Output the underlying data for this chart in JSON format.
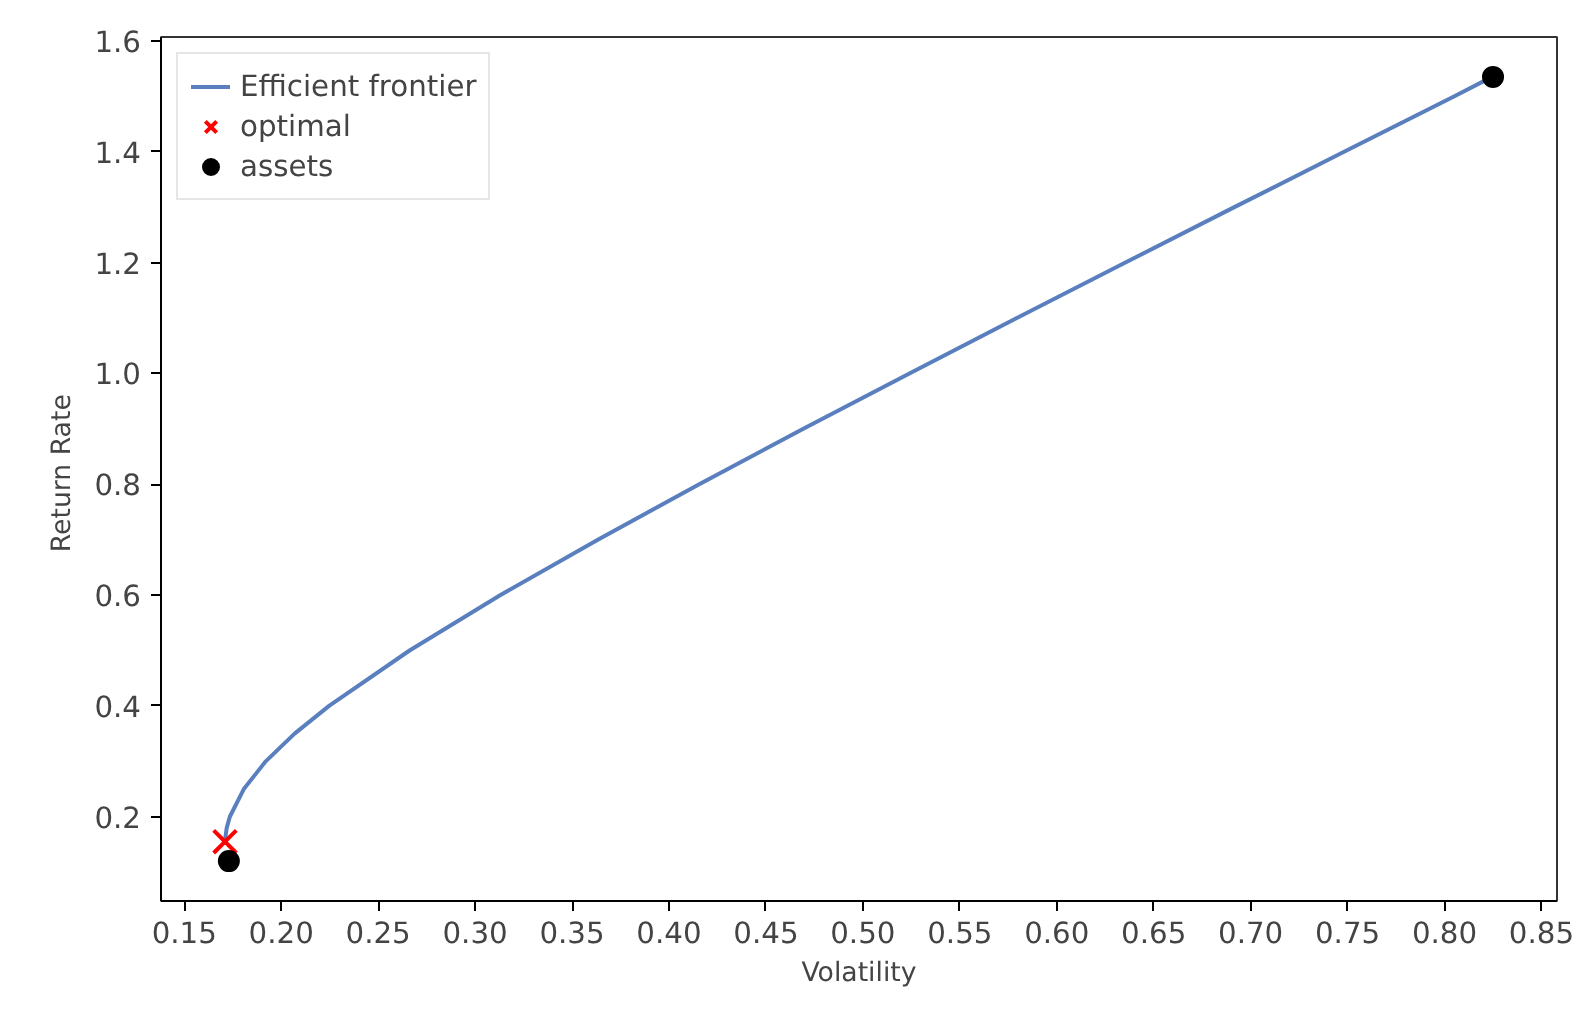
{
  "chart_data": {
    "type": "line",
    "xlabel": "Volatility",
    "ylabel": "Return  Rate",
    "xlim": [
      0.138,
      0.858
    ],
    "ylim": [
      0.048,
      1.607
    ],
    "xticks": [
      {
        "value": 0.15,
        "label": "0.15"
      },
      {
        "value": 0.2,
        "label": "0.20"
      },
      {
        "value": 0.25,
        "label": "0.25"
      },
      {
        "value": 0.3,
        "label": "0.30"
      },
      {
        "value": 0.35,
        "label": "0.35"
      },
      {
        "value": 0.4,
        "label": "0.40"
      },
      {
        "value": 0.45,
        "label": "0.45"
      },
      {
        "value": 0.5,
        "label": "0.50"
      },
      {
        "value": 0.55,
        "label": "0.55"
      },
      {
        "value": 0.6,
        "label": "0.60"
      },
      {
        "value": 0.65,
        "label": "0.65"
      },
      {
        "value": 0.7,
        "label": "0.70"
      },
      {
        "value": 0.75,
        "label": "0.75"
      },
      {
        "value": 0.8,
        "label": "0.80"
      },
      {
        "value": 0.85,
        "label": "0.85"
      }
    ],
    "yticks": [
      0.2,
      0.4,
      0.6,
      0.8,
      {
        "value": 1.0,
        "label": "1.0"
      },
      1.2,
      1.4,
      1.6
    ],
    "grid": false,
    "legend": "top left",
    "series": [
      {
        "name": "Efficient frontier",
        "color": "#5a7fbf",
        "line_style": "solid",
        "x": [
          0.171,
          0.1711,
          0.1719,
          0.1735,
          0.1807,
          0.192,
          0.2069,
          0.2247,
          0.2662,
          0.3131,
          0.3633,
          0.4156,
          0.4693,
          0.524,
          0.5794,
          0.6354,
          0.6916,
          0.7482,
          0.8051,
          0.8245
        ],
        "values": [
          0.15,
          0.16,
          0.18,
          0.2,
          0.25,
          0.3,
          0.35,
          0.4,
          0.5,
          0.6,
          0.7,
          0.8,
          0.9,
          1.0,
          1.1,
          1.2,
          1.3,
          1.4,
          1.5,
          1.535
        ]
      },
      {
        "name": "optimal",
        "type": "scatter",
        "color": "#ff0000",
        "marker": "cross",
        "x": [
          0.171
        ],
        "values": [
          0.155
        ]
      },
      {
        "name": "assets",
        "type": "scatter",
        "color": "#000000",
        "marker": "circle",
        "x": [
          0.173,
          0.825
        ],
        "values": [
          0.12,
          1.535
        ]
      }
    ]
  }
}
